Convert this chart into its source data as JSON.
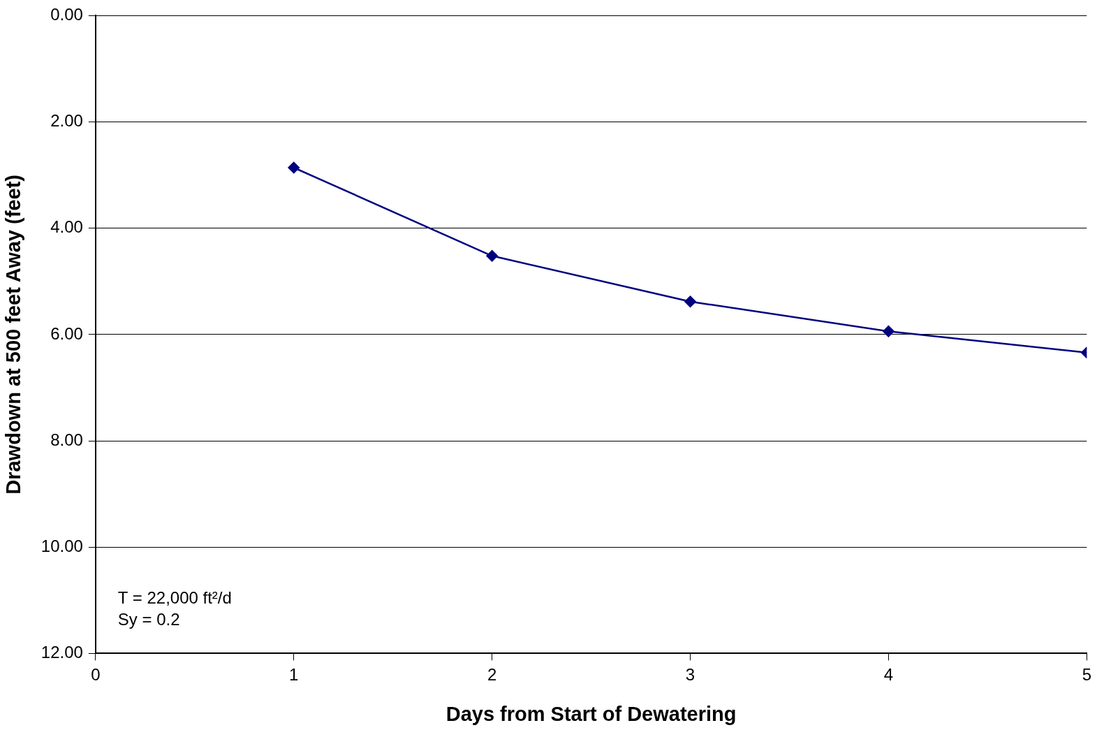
{
  "chart_data": {
    "type": "line",
    "xlabel": "Days from Start of Dewatering",
    "ylabel": "Drawdown at 500 feet Away (feet)",
    "x": [
      1,
      2,
      3,
      4,
      5
    ],
    "series": [
      {
        "color": "#000080",
        "values": [
          2.86,
          4.52,
          5.38,
          5.94,
          6.34
        ]
      }
    ],
    "xlim": [
      0,
      5
    ],
    "xticks": [
      0,
      1,
      2,
      3,
      4,
      5
    ],
    "ylim": [
      12,
      0
    ],
    "yticks": [
      {
        "value": 0,
        "label": "0.00"
      },
      {
        "value": 2,
        "label": "2.00"
      },
      {
        "value": 4,
        "label": "4.00"
      },
      {
        "value": 6,
        "label": "6.00"
      },
      {
        "value": 8,
        "label": "8.00"
      },
      {
        "value": 10,
        "label": "10.00"
      },
      {
        "value": 12,
        "label": "12.00"
      }
    ],
    "grid": "y",
    "legend": false,
    "marker": "diamond",
    "line_style": "solid",
    "annotations": [
      "T = 22,000 ft²/d",
      "Sy = 0.2"
    ]
  }
}
